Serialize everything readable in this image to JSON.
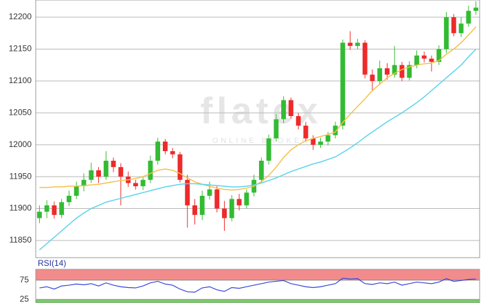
{
  "chart_data": [
    {
      "type": "candlestick",
      "watermark": "flatex",
      "watermark_subtitle": "ONLINE BROKER",
      "up_color": "#33bb33",
      "down_color": "#ee2a2a",
      "grid": true,
      "ylim": [
        11823,
        12227
      ],
      "yticks": [
        11850,
        11900,
        11950,
        12000,
        12050,
        12100,
        12150,
        12200
      ],
      "open": [
        11885,
        11895,
        11905,
        11890,
        11910,
        11920,
        11935,
        11945,
        11960,
        11950,
        11975,
        11965,
        11950,
        11940,
        11935,
        11945,
        11975,
        12005,
        11990,
        11985,
        11945,
        11905,
        11890,
        11920,
        11930,
        11900,
        11885,
        11915,
        11905,
        11925,
        11945,
        11975,
        12010,
        12040,
        12070,
        12045,
        12030,
        12010,
        12000,
        12005,
        12015,
        12030,
        12160,
        12155,
        12160,
        12110,
        12100,
        12120,
        12110,
        12125,
        12105,
        12125,
        12140,
        12135,
        12130,
        12150,
        12200,
        12175,
        12190,
        12210
      ],
      "high": [
        11905,
        11913,
        11911,
        11915,
        11928,
        11942,
        11955,
        11972,
        11965,
        11990,
        11980,
        11971,
        11958,
        11945,
        11951,
        11983,
        12011,
        12009,
        11995,
        11989,
        11953,
        11915,
        11928,
        11942,
        11935,
        11912,
        11921,
        11923,
        11930,
        11953,
        11980,
        12016,
        12048,
        12076,
        12074,
        12050,
        12036,
        12015,
        12011,
        12020,
        12036,
        12165,
        12178,
        12166,
        12164,
        12118,
        12132,
        12128,
        12155,
        12130,
        12131,
        12148,
        12146,
        12140,
        12156,
        12208,
        12205,
        12200,
        12218,
        12225
      ],
      "low": [
        11877,
        11885,
        11884,
        11885,
        11904,
        11915,
        11927,
        11940,
        11940,
        11945,
        11957,
        11905,
        11934,
        11930,
        11929,
        11940,
        11969,
        11985,
        11979,
        11941,
        11870,
        11875,
        11882,
        11914,
        11894,
        11865,
        11880,
        11897,
        11900,
        11919,
        11940,
        11969,
        12005,
        12034,
        12041,
        12024,
        12005,
        11992,
        11995,
        11999,
        12010,
        12024,
        12149,
        12150,
        12104,
        12085,
        12095,
        12102,
        12105,
        12100,
        12101,
        12120,
        12129,
        12115,
        12125,
        12144,
        12170,
        12169,
        12185,
        12204
      ],
      "close": [
        11895,
        11905,
        11890,
        11910,
        11920,
        11935,
        11945,
        11960,
        11950,
        11975,
        11965,
        11950,
        11940,
        11935,
        11945,
        11975,
        12005,
        11990,
        11985,
        11945,
        11905,
        11890,
        11920,
        11930,
        11900,
        11885,
        11915,
        11905,
        11925,
        11945,
        11975,
        12010,
        12040,
        12070,
        12045,
        12030,
        12010,
        12000,
        12005,
        12015,
        12030,
        12160,
        12155,
        12160,
        12110,
        12100,
        12120,
        12110,
        12125,
        12105,
        12125,
        12140,
        12135,
        12130,
        12150,
        12200,
        12175,
        12190,
        12210,
        12215
      ],
      "lines": [
        {
          "color": "#f5c04a",
          "values": [
            11933,
            11933,
            11934,
            11934,
            11935,
            11935,
            11936,
            11937,
            11938,
            11940,
            11942,
            11944,
            11945,
            11947,
            11950,
            11955,
            11960,
            11962,
            11960,
            11955,
            11948,
            11942,
            11938,
            11935,
            11932,
            11930,
            11929,
            11930,
            11932,
            11935,
            11942,
            11952,
            11965,
            11980,
            11992,
            12000,
            12006,
            12010,
            12013,
            12016,
            12020,
            12035,
            12048,
            12060,
            12072,
            12085,
            12095,
            12105,
            12112,
            12118,
            12122,
            12125,
            12127,
            12128,
            12132,
            12142,
            12150,
            12160,
            12172,
            12185
          ]
        },
        {
          "color": "#5ad4ea",
          "values": [
            11835,
            11845,
            11855,
            11865,
            11875,
            11885,
            11893,
            11900,
            11905,
            11910,
            11913,
            11916,
            11919,
            11922,
            11925,
            11928,
            11931,
            11934,
            11936,
            11938,
            11939,
            11939,
            11938,
            11937,
            11936,
            11935,
            11934,
            11934,
            11935,
            11937,
            11940,
            11944,
            11948,
            11953,
            11958,
            11962,
            11966,
            11970,
            11973,
            11977,
            11981,
            11988,
            11995,
            12003,
            12012,
            12020,
            12028,
            12036,
            12043,
            12050,
            12058,
            12066,
            12075,
            12085,
            12095,
            12105,
            12115,
            12125,
            12138,
            12150
          ]
        }
      ]
    },
    {
      "type": "line",
      "title": "RSI(14)",
      "color": "#3344dd",
      "ylim": [
        16,
        103
      ],
      "yticks": [
        25,
        75
      ],
      "upper_band_color": "#f28b8b",
      "lower_band_color": "#77cc66",
      "values": [
        55,
        58,
        52,
        60,
        62,
        65,
        63,
        66,
        60,
        68,
        62,
        58,
        56,
        55,
        60,
        68,
        72,
        65,
        62,
        52,
        45,
        44,
        55,
        58,
        50,
        46,
        56,
        54,
        58,
        62,
        66,
        70,
        72,
        74,
        66,
        62,
        58,
        56,
        58,
        62,
        66,
        80,
        78,
        79,
        66,
        64,
        68,
        66,
        70,
        62,
        66,
        70,
        68,
        66,
        70,
        79,
        72,
        74,
        77,
        78
      ]
    }
  ]
}
